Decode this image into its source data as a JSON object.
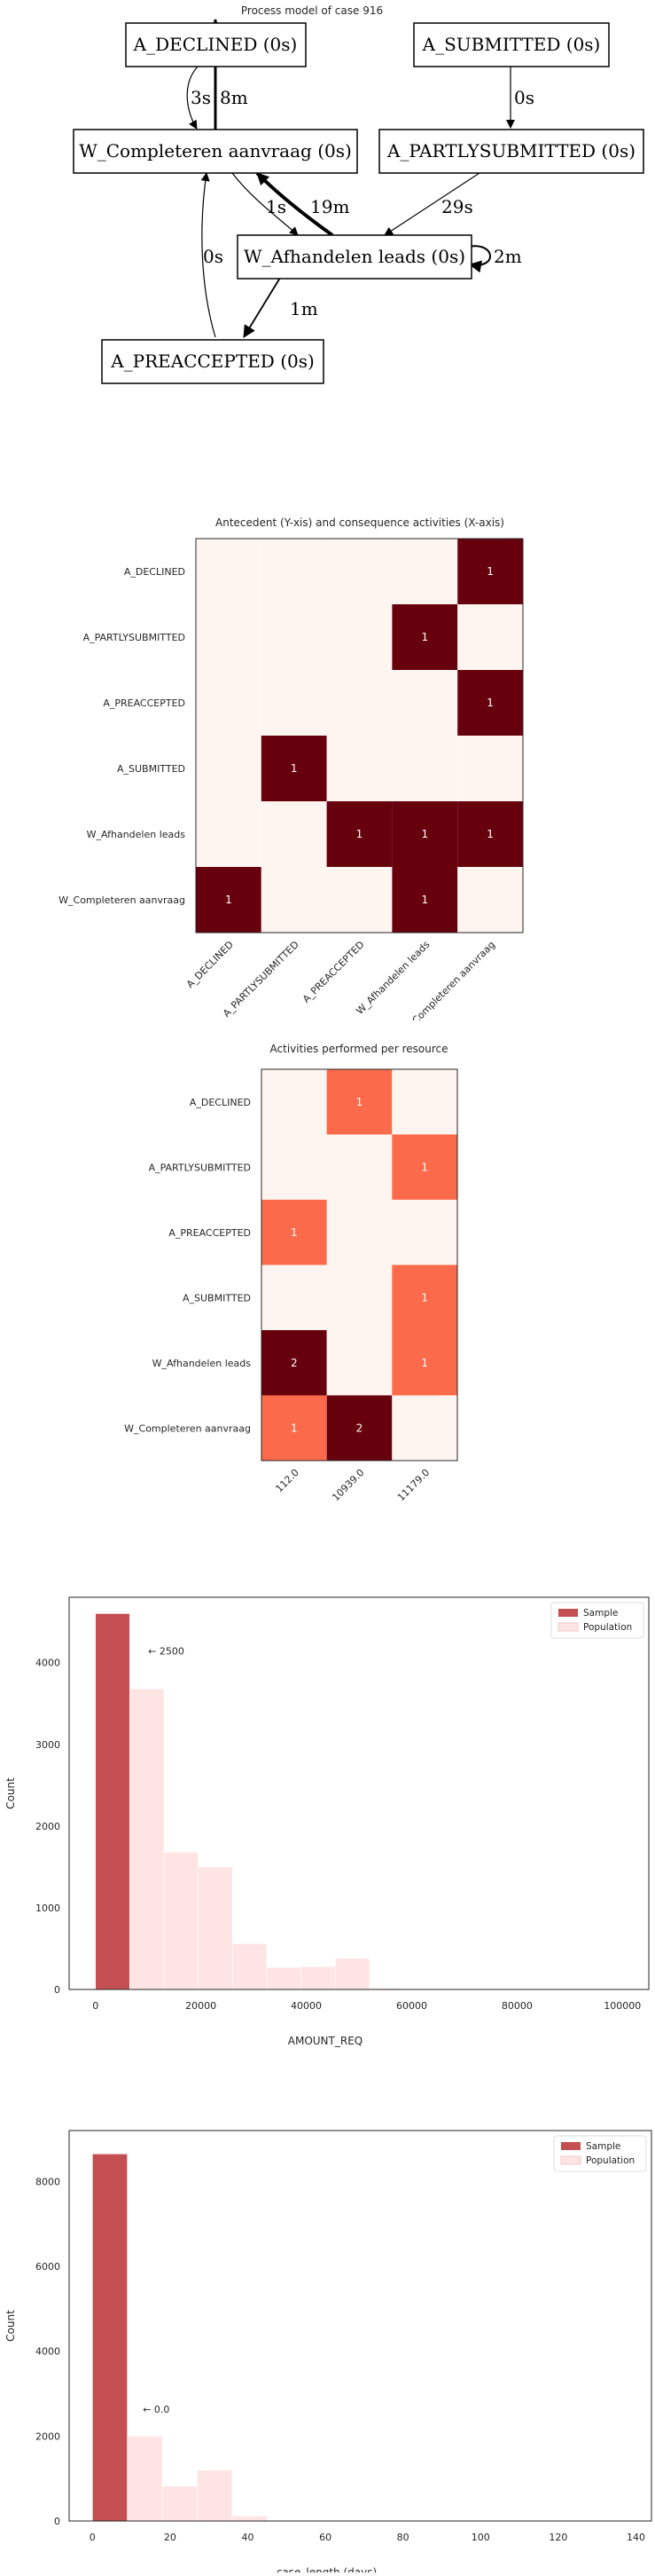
{
  "process_model": {
    "title": "Process model of case 916",
    "nodes": [
      {
        "id": "A_DECLINED",
        "label": "A_DECLINED (0s)"
      },
      {
        "id": "A_SUBMITTED",
        "label": "A_SUBMITTED (0s)"
      },
      {
        "id": "W_Completeren",
        "label": "W_Completeren aanvraag (0s)"
      },
      {
        "id": "A_PARTLYSUBMITTED",
        "label": "A_PARTLYSUBMITTED (0s)"
      },
      {
        "id": "W_Afhandelen",
        "label": "W_Afhandelen leads (0s)"
      },
      {
        "id": "A_PREACCEPTED",
        "label": "A_PREACCEPTED (0s)"
      }
    ],
    "edges": [
      {
        "from": "W_Completeren",
        "to": "A_DECLINED",
        "label": "8m"
      },
      {
        "from": "A_DECLINED",
        "to": "W_Completeren",
        "label": "3s"
      },
      {
        "from": "A_SUBMITTED",
        "to": "A_PARTLYSUBMITTED",
        "label": "0s"
      },
      {
        "from": "W_Completeren",
        "to": "W_Afhandelen",
        "label": "1s"
      },
      {
        "from": "W_Afhandelen",
        "to": "W_Completeren",
        "label": "19m"
      },
      {
        "from": "A_PARTLYSUBMITTED",
        "to": "W_Afhandelen",
        "label": "29s"
      },
      {
        "from": "W_Afhandelen",
        "to": "W_Afhandelen",
        "label": "2m"
      },
      {
        "from": "A_PREACCEPTED",
        "to": "W_Completeren",
        "label": "0s"
      },
      {
        "from": "W_Afhandelen",
        "to": "A_PREACCEPTED",
        "label": "1m"
      }
    ]
  },
  "chart_data": [
    {
      "type": "heatmap",
      "title": "Antecedent (Y-xis) and consequence activities (X-axis)",
      "y_labels": [
        "A_DECLINED",
        "A_PARTLYSUBMITTED",
        "A_PREACCEPTED",
        "A_SUBMITTED",
        "W_Afhandelen leads",
        "W_Completeren aanvraag"
      ],
      "x_labels": [
        "A_DECLINED",
        "A_PARTLYSUBMITTED",
        "A_PREACCEPTED",
        "W_Afhandelen leads",
        "W_Completeren aanvraag"
      ],
      "values": [
        [
          0,
          0,
          0,
          0,
          1
        ],
        [
          0,
          0,
          0,
          1,
          0
        ],
        [
          0,
          0,
          0,
          0,
          1
        ],
        [
          0,
          1,
          0,
          0,
          0
        ],
        [
          0,
          0,
          1,
          1,
          1
        ],
        [
          1,
          0,
          0,
          1,
          0
        ]
      ],
      "colors": {
        "high": "#67000d",
        "low": "#fff5f0"
      }
    },
    {
      "type": "heatmap",
      "title": "Activities performed per resource",
      "y_labels": [
        "A_DECLINED",
        "A_PARTLYSUBMITTED",
        "A_PREACCEPTED",
        "A_SUBMITTED",
        "W_Afhandelen leads",
        "W_Completeren aanvraag"
      ],
      "x_labels": [
        "112.0",
        "10939.0",
        "11179.0"
      ],
      "values": [
        [
          0,
          1,
          0
        ],
        [
          0,
          0,
          1
        ],
        [
          1,
          0,
          0
        ],
        [
          0,
          0,
          1
        ],
        [
          2,
          0,
          1
        ],
        [
          1,
          2,
          0
        ]
      ],
      "colors": {
        "high": "#67000d",
        "mid": "#fb6a4a",
        "low": "#fff5f0"
      }
    },
    {
      "type": "bar",
      "xlabel": "AMOUNT_REQ",
      "ylabel": "Count",
      "xlim": [
        -5000,
        105000
      ],
      "ylim": [
        0,
        4800
      ],
      "xticks": [
        "0",
        "20000",
        "40000",
        "60000",
        "80000",
        "100000"
      ],
      "yticks": [
        "0",
        "1000",
        "2000",
        "3000",
        "4000"
      ],
      "series": [
        {
          "name": "Sample",
          "color": "#c44e52",
          "bins": [
            {
              "x0": 0,
              "x1": 6500,
              "value": 4600
            }
          ]
        },
        {
          "name": "Population",
          "color": "#ffe4e4",
          "bins": [
            {
              "x0": 6500,
              "x1": 13000,
              "value": 3680
            },
            {
              "x0": 13000,
              "x1": 19500,
              "value": 1680
            },
            {
              "x0": 19500,
              "x1": 26000,
              "value": 1500
            },
            {
              "x0": 26000,
              "x1": 32500,
              "value": 560
            },
            {
              "x0": 32500,
              "x1": 39000,
              "value": 270
            },
            {
              "x0": 39000,
              "x1": 45500,
              "value": 280
            },
            {
              "x0": 45500,
              "x1": 52000,
              "value": 380
            },
            {
              "x0": 52000,
              "x1": 58500,
              "value": 15
            },
            {
              "x0": 58500,
              "x1": 65000,
              "value": 10
            }
          ]
        }
      ],
      "annotation": {
        "text": "← 2500",
        "x": 10000,
        "y": 4100
      },
      "legend": "top-right"
    },
    {
      "type": "bar",
      "xlabel": "case_length (days)",
      "ylabel": "Count",
      "xlim": [
        -6,
        144
      ],
      "ylim": [
        0,
        9200
      ],
      "xticks": [
        "0",
        "20",
        "40",
        "60",
        "80",
        "100",
        "120",
        "140"
      ],
      "yticks": [
        "0",
        "2000",
        "4000",
        "6000",
        "8000"
      ],
      "series": [
        {
          "name": "Sample",
          "color": "#c44e52",
          "bins": [
            {
              "x0": 0,
              "x1": 9,
              "value": 8650
            }
          ]
        },
        {
          "name": "Population",
          "color": "#ffe4e4",
          "bins": [
            {
              "x0": 9,
              "x1": 18,
              "value": 2000
            },
            {
              "x0": 18,
              "x1": 27,
              "value": 820
            },
            {
              "x0": 27,
              "x1": 36,
              "value": 1200
            },
            {
              "x0": 36,
              "x1": 45,
              "value": 120
            }
          ]
        }
      ],
      "annotation": {
        "text": "← 0.0",
        "x": 13,
        "y": 2550
      },
      "legend": "top-right"
    }
  ]
}
